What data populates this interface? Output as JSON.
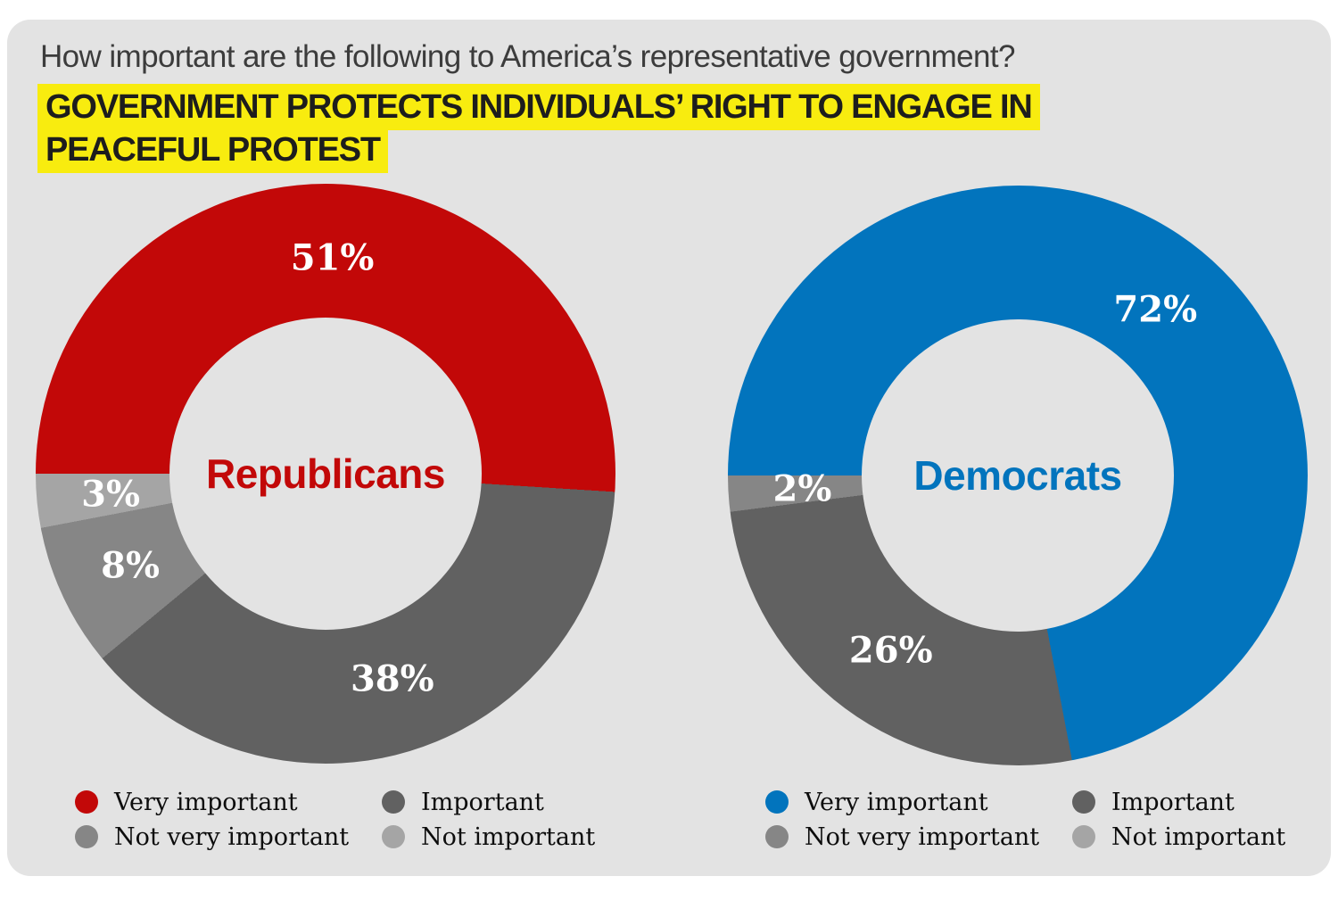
{
  "title": "How important are the following to America’s representative government?",
  "highlight_heading": "GOVERNMENT PROTECTS INDIVIDUALS’ RIGHT TO ENGAGE IN\nPEACEFUL PROTEST",
  "colors": {
    "page_background": "#ffffff",
    "card_background": "#e3e3e3",
    "highlight_yellow": "#f8ec0f",
    "title_text": "#3c3c3c",
    "heading_text": "#1d1d1d",
    "republican_red": "#c20808",
    "democrat_blue": "#0274bd",
    "gray_dark": "#616161",
    "gray_medium": "#868686",
    "gray_light": "#a5a5a5",
    "label_white": "#ffffff",
    "legend_text": "#0d0d0d"
  },
  "chart_data": [
    {
      "type": "pie",
      "variant": "donut",
      "group": "Republicans",
      "center_label": "Republicans",
      "accent_color": "#c20808",
      "start_angle_deg": 270,
      "direction": "clockwise",
      "categories": [
        "Very important",
        "Important",
        "Not very important",
        "Not important"
      ],
      "values": [
        51,
        38,
        8,
        3
      ],
      "display_labels": [
        "51%",
        "38%",
        "8%",
        "3%"
      ],
      "colors": [
        "#c20808",
        "#616161",
        "#868686",
        "#a5a5a5"
      ],
      "legend": [
        {
          "label": "Very important",
          "color": "#c20808"
        },
        {
          "label": "Important",
          "color": "#616161"
        },
        {
          "label": "Not very important",
          "color": "#868686"
        },
        {
          "label": "Not important",
          "color": "#a5a5a5"
        }
      ]
    },
    {
      "type": "pie",
      "variant": "donut",
      "group": "Democrats",
      "center_label": "Democrats",
      "accent_color": "#0274bd",
      "start_angle_deg": 270,
      "direction": "clockwise",
      "categories": [
        "Very important",
        "Important",
        "Not very important"
      ],
      "values": [
        72,
        26,
        2
      ],
      "display_labels": [
        "72%",
        "26%",
        "2%"
      ],
      "colors": [
        "#0274bd",
        "#616161",
        "#868686"
      ],
      "legend": [
        {
          "label": "Very important",
          "color": "#0274bd"
        },
        {
          "label": "Important",
          "color": "#616161"
        },
        {
          "label": "Not very important",
          "color": "#868686"
        },
        {
          "label": "Not important",
          "color": "#a5a5a5"
        }
      ]
    }
  ]
}
